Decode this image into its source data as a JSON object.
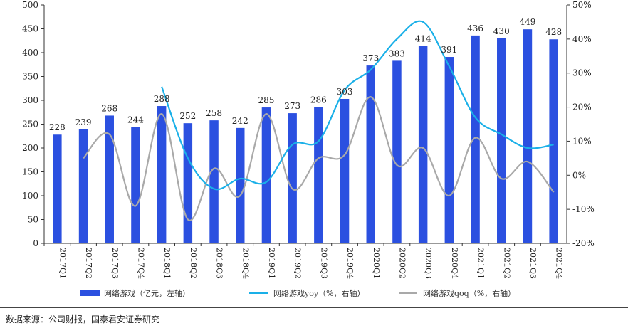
{
  "chart_data": {
    "type": "bar+line",
    "categories": [
      "2017Q1",
      "2017Q2",
      "2017Q3",
      "2017Q4",
      "2018Q1",
      "2018Q2",
      "2018Q3",
      "2018Q4",
      "2019Q1",
      "2019Q2",
      "2019Q3",
      "2019Q4",
      "2020Q1",
      "2020Q2",
      "2020Q3",
      "2020Q4",
      "2021Q1",
      "2021Q2",
      "2021Q3",
      "2021Q4"
    ],
    "bar_series": {
      "name": "网络游戏（亿元，左轴）",
      "values": [
        228,
        239,
        268,
        244,
        288,
        252,
        258,
        242,
        285,
        273,
        286,
        303,
        373,
        383,
        414,
        391,
        436,
        430,
        449,
        428
      ],
      "color": "#2b50e0"
    },
    "line_series": [
      {
        "name": "网络游戏yoy（%，右轴）",
        "color": "#1ab0e8",
        "start_index": 4,
        "values": [
          26,
          5,
          -4,
          -1,
          -2,
          9,
          10,
          25,
          31,
          40,
          45,
          32,
          17,
          12,
          8,
          9
        ]
      },
      {
        "name": "网络游戏qoq（%，右轴）",
        "color": "#a9a9a9",
        "start_index": 1,
        "values": [
          5,
          12,
          -9,
          18,
          -13,
          2,
          -6,
          18,
          -4,
          5,
          6,
          23,
          3,
          8,
          -6,
          11,
          -1,
          4,
          -5
        ]
      }
    ],
    "left_axis": {
      "min": 0,
      "max": 500,
      "ticks": [
        0,
        50,
        100,
        150,
        200,
        250,
        300,
        350,
        400,
        450,
        500
      ]
    },
    "right_axis": {
      "min": -20,
      "max": 50,
      "ticks": [
        "-20%",
        "-10%",
        "0%",
        "10%",
        "20%",
        "30%",
        "40%",
        "50%"
      ]
    },
    "legend": [
      "网络游戏（亿元，左轴）",
      "网络游戏yoy（%，右轴）",
      "网络游戏qoq（%，右轴）"
    ],
    "legend_position": "bottom"
  },
  "source": "数据来源：公司财报，国泰君安证券研究"
}
